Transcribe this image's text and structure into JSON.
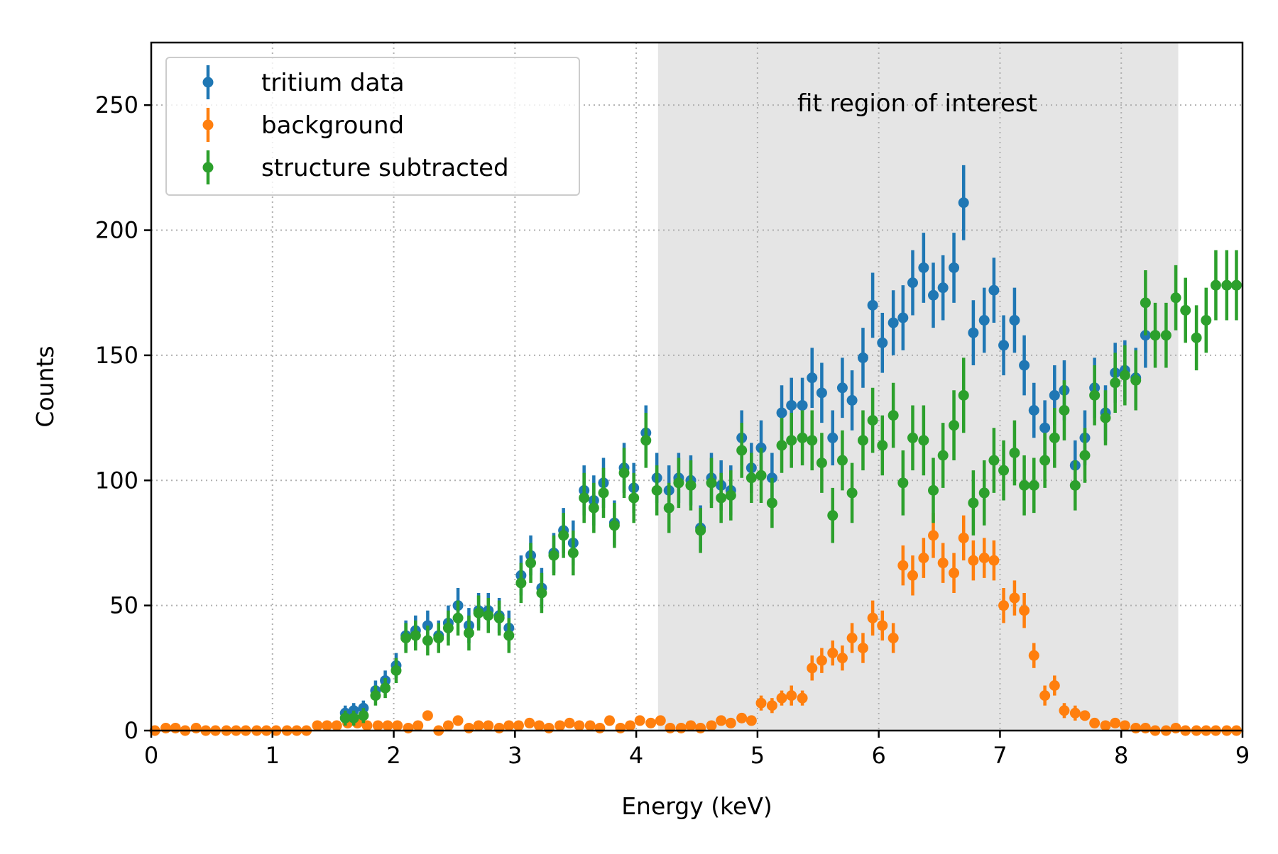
{
  "chart_data": {
    "type": "scatter",
    "xlabel": "Energy (keV)",
    "ylabel": "Counts",
    "xlim": [
      0,
      9
    ],
    "ylim": [
      0,
      275
    ],
    "xticks": [
      "0",
      "1",
      "2",
      "3",
      "4",
      "5",
      "6",
      "7",
      "8",
      "9"
    ],
    "yticks": [
      "0",
      "50",
      "100",
      "150",
      "200",
      "250"
    ],
    "grid": true,
    "legend_position": "top-left",
    "shaded_region": {
      "x_range": [
        4.18,
        8.47
      ],
      "label": "fit region of interest",
      "color": "#e5e5e5"
    },
    "series": [
      {
        "name": "tritium data",
        "color": "#1f77b4",
        "x": [
          1.6,
          1.67,
          1.75,
          1.85,
          1.93,
          2.02,
          2.1,
          2.18,
          2.28,
          2.37,
          2.45,
          2.53,
          2.62,
          2.7,
          2.78,
          2.87,
          2.95,
          3.05,
          3.13,
          3.22,
          3.32,
          3.4,
          3.48,
          3.57,
          3.65,
          3.73,
          3.82,
          3.9,
          3.98,
          4.08,
          4.17,
          4.27,
          4.35,
          4.45,
          4.53,
          4.62,
          4.7,
          4.78,
          4.87,
          4.95,
          5.03,
          5.12,
          5.2,
          5.28,
          5.37,
          5.45,
          5.53,
          5.62,
          5.7,
          5.78,
          5.87,
          5.95,
          6.03,
          6.12,
          6.2,
          6.28,
          6.37,
          6.45,
          6.53,
          6.62,
          6.7,
          6.78,
          6.87,
          6.95,
          7.03,
          7.12,
          7.2,
          7.28,
          7.37,
          7.45,
          7.53,
          7.62,
          7.7,
          7.78,
          7.87,
          7.95,
          8.03,
          8.12,
          8.2
        ],
        "y": [
          7,
          8,
          9,
          16,
          20,
          26,
          38,
          40,
          42,
          38,
          43,
          50,
          42,
          48,
          48,
          46,
          41,
          62,
          70,
          57,
          71,
          80,
          75,
          96,
          92,
          99,
          83,
          105,
          97,
          119,
          101,
          96,
          101,
          100,
          81,
          101,
          98,
          96,
          117,
          105,
          113,
          101,
          127,
          130,
          130,
          141,
          135,
          117,
          137,
          132,
          149,
          170,
          155,
          163,
          165,
          179,
          185,
          174,
          177,
          185,
          211,
          159,
          164,
          176,
          154,
          164,
          146,
          128,
          121,
          134,
          136,
          106,
          117,
          137,
          127,
          143,
          144,
          141,
          158
        ],
        "yerr": [
          3,
          3,
          3,
          4,
          4,
          5,
          6,
          6,
          6,
          6,
          7,
          7,
          7,
          7,
          7,
          7,
          7,
          8,
          8,
          8,
          8,
          9,
          9,
          10,
          10,
          10,
          9,
          10,
          10,
          11,
          10,
          10,
          10,
          10,
          9,
          10,
          10,
          10,
          11,
          10,
          11,
          10,
          11,
          11,
          11,
          12,
          12,
          11,
          12,
          12,
          12,
          13,
          12,
          13,
          13,
          13,
          14,
          13,
          13,
          14,
          15,
          13,
          13,
          13,
          12,
          13,
          12,
          11,
          11,
          12,
          12,
          10,
          11,
          12,
          11,
          12,
          12,
          12,
          13
        ]
      },
      {
        "name": "background",
        "color": "#ff7f0e",
        "x": [
          0.03,
          0.12,
          0.2,
          0.28,
          0.37,
          0.45,
          0.53,
          0.62,
          0.7,
          0.78,
          0.87,
          0.95,
          1.03,
          1.12,
          1.2,
          1.28,
          1.37,
          1.45,
          1.53,
          1.62,
          1.7,
          1.78,
          1.87,
          1.95,
          2.03,
          2.12,
          2.2,
          2.28,
          2.37,
          2.45,
          2.53,
          2.62,
          2.7,
          2.78,
          2.87,
          2.95,
          3.03,
          3.12,
          3.2,
          3.28,
          3.37,
          3.45,
          3.53,
          3.62,
          3.7,
          3.78,
          3.87,
          3.95,
          4.03,
          4.12,
          4.2,
          4.28,
          4.37,
          4.45,
          4.53,
          4.62,
          4.7,
          4.78,
          4.87,
          4.95,
          5.03,
          5.12,
          5.2,
          5.28,
          5.37,
          5.45,
          5.53,
          5.62,
          5.7,
          5.78,
          5.87,
          5.95,
          6.03,
          6.12,
          6.2,
          6.28,
          6.37,
          6.45,
          6.53,
          6.62,
          6.7,
          6.78,
          6.87,
          6.95,
          7.03,
          7.12,
          7.2,
          7.28,
          7.37,
          7.45,
          7.53,
          7.62,
          7.7,
          7.78,
          7.87,
          7.95,
          8.03,
          8.12,
          8.2,
          8.28,
          8.37,
          8.45,
          8.53,
          8.62,
          8.7,
          8.78,
          8.87,
          8.95
        ],
        "y": [
          0,
          1,
          1,
          0,
          1,
          0,
          0,
          0,
          0,
          0,
          0,
          0,
          0,
          0,
          0,
          0,
          2,
          2,
          2,
          3,
          3,
          2,
          2,
          2,
          2,
          1,
          2,
          6,
          0,
          2,
          4,
          1,
          2,
          2,
          1,
          2,
          2,
          3,
          2,
          1,
          2,
          3,
          2,
          2,
          1,
          4,
          1,
          2,
          4,
          3,
          4,
          1,
          1,
          2,
          1,
          2,
          4,
          3,
          5,
          4,
          11,
          10,
          13,
          14,
          13,
          25,
          28,
          31,
          29,
          37,
          33,
          45,
          42,
          37,
          66,
          62,
          69,
          78,
          67,
          63,
          77,
          68,
          69,
          68,
          50,
          53,
          48,
          30,
          14,
          18,
          8,
          7,
          6,
          3,
          2,
          3,
          2,
          1,
          1,
          0,
          0,
          1,
          0,
          0,
          0,
          0,
          0,
          0
        ],
        "yerr": [
          1,
          1,
          1,
          1,
          1,
          1,
          1,
          1,
          1,
          1,
          1,
          1,
          1,
          1,
          1,
          1,
          1,
          1,
          1,
          2,
          2,
          1,
          1,
          1,
          1,
          1,
          1,
          2,
          1,
          1,
          2,
          1,
          1,
          1,
          1,
          1,
          1,
          2,
          1,
          1,
          1,
          2,
          1,
          1,
          1,
          2,
          1,
          1,
          2,
          2,
          2,
          1,
          1,
          1,
          1,
          1,
          2,
          2,
          2,
          2,
          3,
          3,
          3,
          4,
          3,
          5,
          5,
          5,
          5,
          6,
          6,
          7,
          6,
          6,
          8,
          8,
          8,
          9,
          8,
          8,
          9,
          8,
          8,
          8,
          7,
          7,
          7,
          5,
          4,
          4,
          3,
          3,
          2,
          2,
          1,
          2,
          1,
          1,
          1,
          1,
          1,
          1,
          1,
          1,
          1,
          1,
          1,
          1
        ]
      },
      {
        "name": "structure subtracted",
        "color": "#2ca02c",
        "x": [
          1.6,
          1.67,
          1.75,
          1.85,
          1.93,
          2.02,
          2.1,
          2.18,
          2.28,
          2.37,
          2.45,
          2.53,
          2.62,
          2.7,
          2.78,
          2.87,
          2.95,
          3.05,
          3.13,
          3.22,
          3.32,
          3.4,
          3.48,
          3.57,
          3.65,
          3.73,
          3.82,
          3.9,
          3.98,
          4.08,
          4.17,
          4.27,
          4.35,
          4.45,
          4.53,
          4.62,
          4.7,
          4.78,
          4.87,
          4.95,
          5.03,
          5.12,
          5.2,
          5.28,
          5.37,
          5.45,
          5.53,
          5.62,
          5.7,
          5.78,
          5.87,
          5.95,
          6.03,
          6.12,
          6.2,
          6.28,
          6.37,
          6.45,
          6.53,
          6.62,
          6.7,
          6.78,
          6.87,
          6.95,
          7.03,
          7.12,
          7.2,
          7.28,
          7.37,
          7.45,
          7.53,
          7.62,
          7.7,
          7.78,
          7.87,
          7.95,
          8.03,
          8.12,
          8.2,
          8.28,
          8.37,
          8.45,
          8.53,
          8.62,
          8.7,
          8.78,
          8.87,
          8.95
        ],
        "y": [
          5,
          5,
          6,
          14,
          17,
          24,
          37,
          38,
          36,
          37,
          41,
          45,
          39,
          47,
          46,
          45,
          38,
          59,
          67,
          55,
          70,
          78,
          71,
          93,
          89,
          95,
          82,
          103,
          93,
          116,
          96,
          89,
          99,
          98,
          80,
          99,
          93,
          94,
          112,
          101,
          102,
          91,
          114,
          116,
          117,
          116,
          107,
          86,
          108,
          95,
          116,
          124,
          114,
          126,
          99,
          117,
          116,
          96,
          110,
          122,
          134,
          91,
          95,
          108,
          104,
          111,
          98,
          98,
          108,
          117,
          128,
          98,
          110,
          134,
          125,
          139,
          142,
          140,
          171,
          158,
          158,
          173,
          168,
          157,
          164,
          178,
          178,
          178
        ],
        "yerr": [
          3,
          3,
          3,
          4,
          4,
          5,
          6,
          6,
          6,
          6,
          7,
          7,
          7,
          7,
          7,
          7,
          7,
          8,
          8,
          8,
          8,
          9,
          9,
          10,
          10,
          10,
          9,
          10,
          10,
          11,
          10,
          10,
          10,
          10,
          9,
          10,
          10,
          10,
          11,
          10,
          11,
          10,
          11,
          11,
          11,
          12,
          12,
          11,
          12,
          12,
          12,
          13,
          12,
          13,
          13,
          13,
          14,
          13,
          13,
          14,
          15,
          13,
          13,
          13,
          12,
          13,
          12,
          11,
          11,
          12,
          12,
          10,
          11,
          12,
          11,
          12,
          12,
          12,
          13,
          13,
          13,
          13,
          13,
          13,
          13,
          14,
          14,
          14
        ]
      }
    ]
  }
}
